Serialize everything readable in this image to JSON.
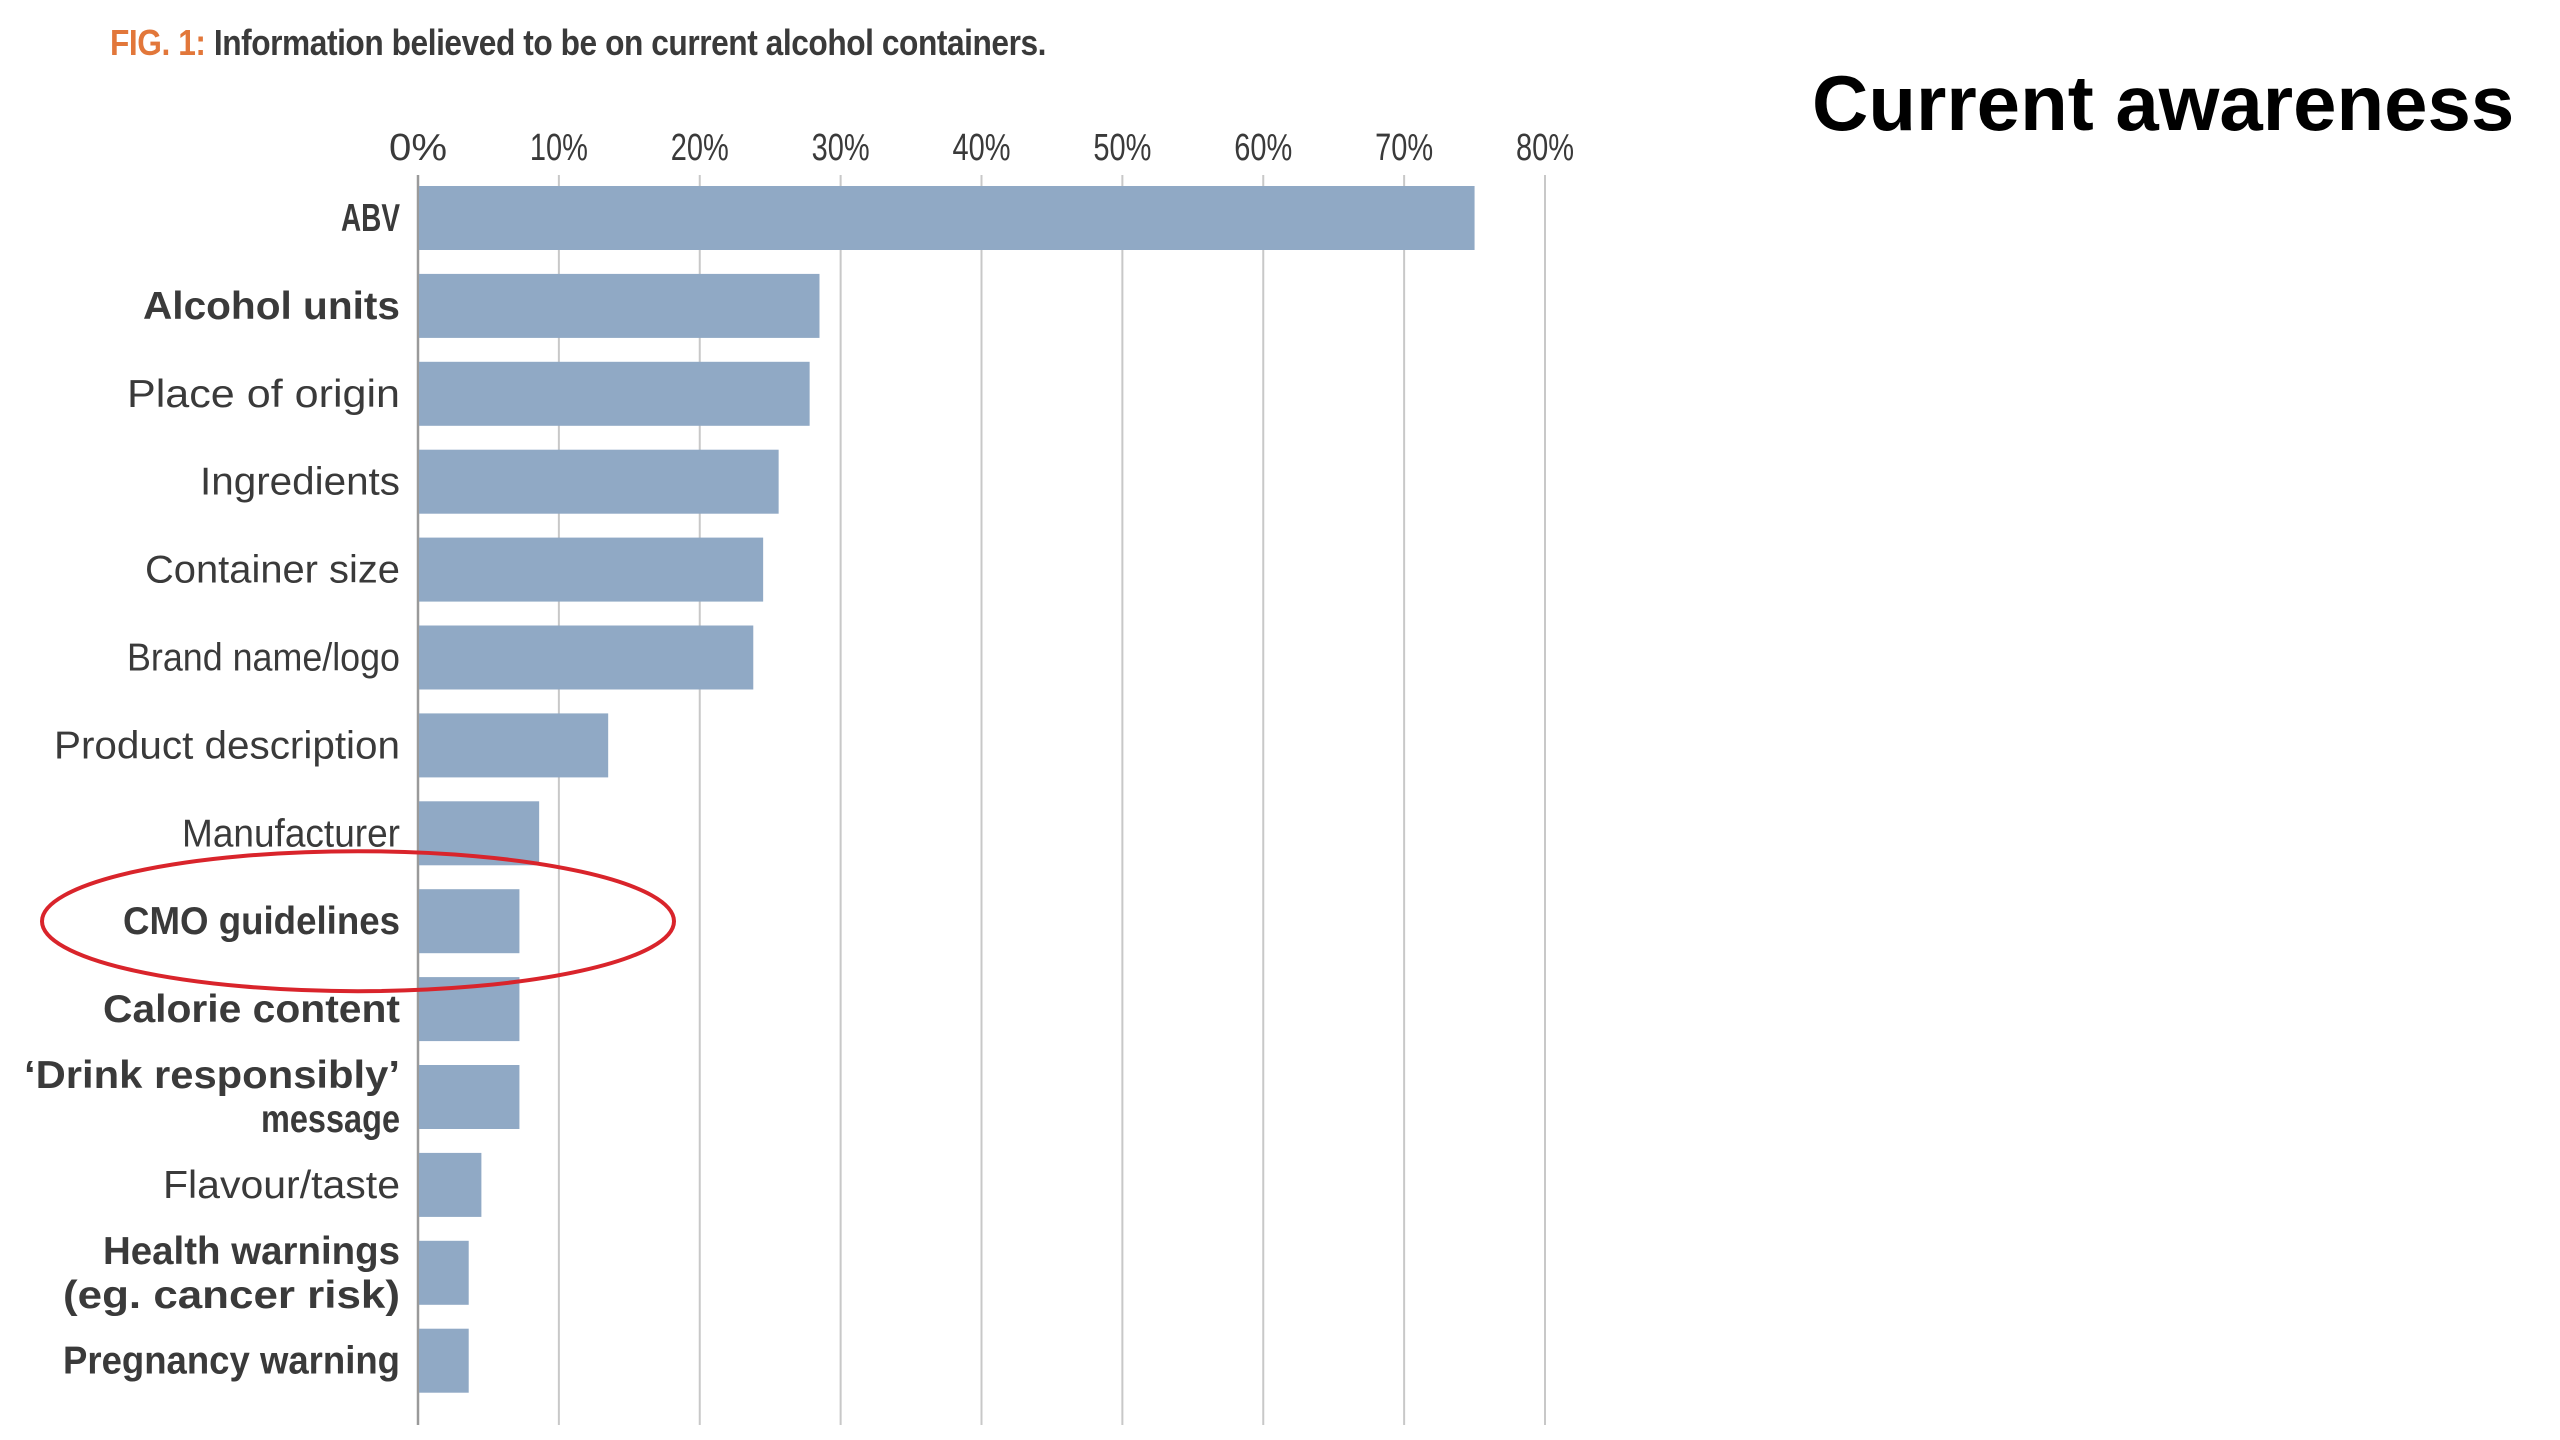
{
  "figure": {
    "label": "FIG. 1:",
    "title": "Information believed to be on current alcohol containers."
  },
  "side_title": "Current awareness",
  "colors": {
    "bar": "#90a9c5",
    "grid": "#c8c8c8",
    "axis": "#9a9a9a",
    "fig_label": "#e2773a",
    "highlight_ellipse": "#d9242b",
    "text": "#3a3a3a"
  },
  "chart_data": {
    "type": "bar",
    "orientation": "horizontal",
    "title": "Information believed to be on current alcohol containers.",
    "xlabel": "",
    "ylabel": "",
    "xlim": [
      0,
      80
    ],
    "x_ticks": [
      "0%",
      "10%",
      "20%",
      "30%",
      "40%",
      "50%",
      "60%",
      "70%",
      "80%"
    ],
    "grid": true,
    "categories": [
      {
        "lines": [
          "ABV"
        ],
        "bold": true
      },
      {
        "lines": [
          "Alcohol units"
        ],
        "bold": true
      },
      {
        "lines": [
          "Place of origin"
        ],
        "bold": false
      },
      {
        "lines": [
          "Ingredients"
        ],
        "bold": false
      },
      {
        "lines": [
          "Container size"
        ],
        "bold": false
      },
      {
        "lines": [
          "Brand name/logo"
        ],
        "bold": false
      },
      {
        "lines": [
          "Product description"
        ],
        "bold": false
      },
      {
        "lines": [
          "Manufacturer"
        ],
        "bold": false
      },
      {
        "lines": [
          "CMO guidelines"
        ],
        "bold": true
      },
      {
        "lines": [
          "Calorie content"
        ],
        "bold": true
      },
      {
        "lines": [
          "‘Drink responsibly’",
          "message"
        ],
        "bold": true
      },
      {
        "lines": [
          "Flavour/taste"
        ],
        "bold": false
      },
      {
        "lines": [
          "Health warnings",
          "(eg. cancer risk)"
        ],
        "bold": true
      },
      {
        "lines": [
          "Pregnancy warning"
        ],
        "bold": true
      }
    ],
    "values": [
      75,
      28.5,
      27.8,
      25.6,
      24.5,
      23.8,
      13.5,
      8.6,
      7.2,
      7.2,
      7.2,
      4.5,
      3.6,
      3.6
    ],
    "highlighted_category": "CMO guidelines"
  }
}
